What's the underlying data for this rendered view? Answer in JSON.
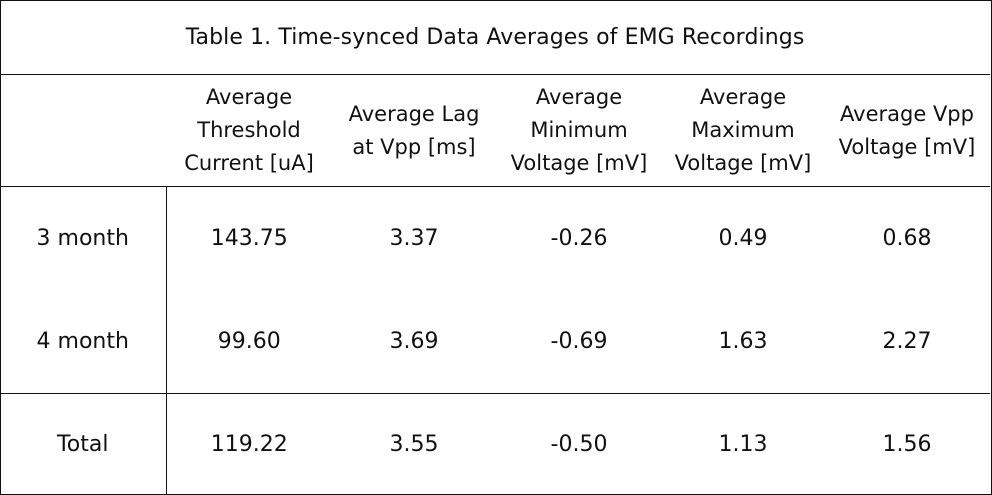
{
  "caption": "Table 1.  Time-synced Data Averages of EMG Recordings",
  "columns": [
    "",
    "Average Threshold Current [uA]",
    "Average Lag at Vpp [ms]",
    "Average Minimum Voltage [mV]",
    "Average Maximum Voltage [mV]",
    "Average Vpp Voltage [mV]"
  ],
  "header_lines": [
    [],
    [
      "Average",
      "Threshold",
      "Current [uA]"
    ],
    [
      "Average Lag",
      "at Vpp [ms]"
    ],
    [
      "Average",
      "Minimum",
      "Voltage [mV]"
    ],
    [
      "Average",
      "Maximum",
      "Voltage [mV]"
    ],
    [
      "Average Vpp",
      "Voltage [mV]"
    ]
  ],
  "rows": [
    {
      "label": "3 month",
      "values": [
        "143.75",
        "3.37",
        "-0.26",
        "0.49",
        "0.68"
      ]
    },
    {
      "label": "4 month",
      "values": [
        "99.60",
        "3.69",
        "-0.69",
        "1.63",
        "2.27"
      ]
    },
    {
      "label": "Total",
      "values": [
        "119.22",
        "3.55",
        "-0.50",
        "1.13",
        "1.56"
      ]
    }
  ]
}
